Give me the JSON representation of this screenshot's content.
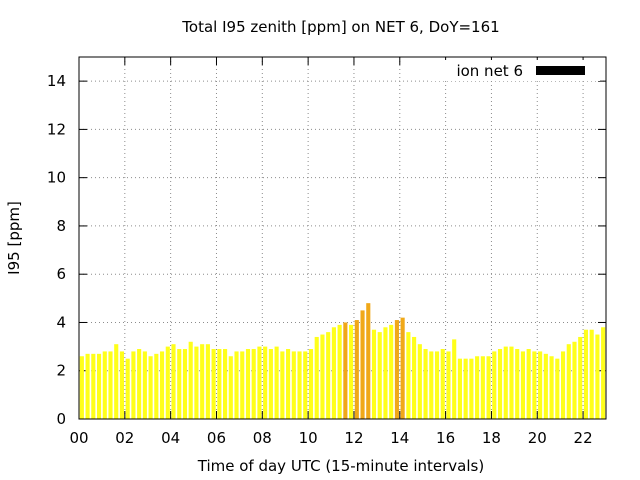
{
  "chart_data": {
    "type": "bar",
    "title": "Total I95 zenith [ppm] on NET 6, DoY=161",
    "xlabel": "Time of day UTC (15-minute intervals)",
    "ylabel": "I95 [ppm]",
    "xlim": [
      0,
      23
    ],
    "ylim": [
      0,
      15
    ],
    "x_ticks": [
      "00",
      "02",
      "04",
      "06",
      "08",
      "10",
      "12",
      "14",
      "16",
      "18",
      "20",
      "22"
    ],
    "y_ticks": [
      "0",
      "2",
      "4",
      "6",
      "8",
      "10",
      "12",
      "14"
    ],
    "grid": true,
    "legend": {
      "placement": "top-right",
      "entries": [
        {
          "label": "ion net 6",
          "color": "#000000"
        }
      ]
    },
    "colors": {
      "normal": "#ffff1a",
      "elevated": "#f0a818"
    },
    "elevated_threshold": 4.0,
    "interval_hours": 0.25,
    "series": [
      {
        "x": [
          0.0,
          0.25,
          0.5,
          0.75,
          1.0,
          1.25,
          1.5,
          1.75,
          2.0,
          2.25,
          2.5,
          2.75,
          3.0,
          3.25,
          3.5,
          3.75,
          4.0,
          4.25,
          4.5,
          4.75,
          5.0,
          5.25,
          5.5,
          5.75,
          6.0,
          6.25,
          6.5,
          6.75,
          7.0,
          7.25,
          7.5,
          7.75,
          8.0,
          8.25,
          8.5,
          8.75,
          9.0,
          9.25,
          9.5,
          9.75,
          10.0,
          10.25,
          10.5,
          10.75,
          11.0,
          11.25,
          11.5,
          11.75,
          12.0,
          12.25,
          12.5,
          12.75,
          13.0,
          13.25,
          13.5,
          13.75,
          14.0,
          14.25,
          14.5,
          14.75,
          15.0,
          15.25,
          15.5,
          15.75,
          16.0,
          16.25,
          16.5,
          16.75,
          17.0,
          17.25,
          17.5,
          17.75,
          18.0,
          18.25,
          18.5,
          18.75,
          19.0,
          19.25,
          19.5,
          19.75,
          20.0,
          20.25,
          20.5,
          20.75,
          21.0,
          21.25,
          21.5,
          21.75,
          22.0,
          22.25,
          22.5,
          22.75
        ],
        "values": [
          2.6,
          2.7,
          2.7,
          2.7,
          2.8,
          2.8,
          3.1,
          2.8,
          2.5,
          2.8,
          2.9,
          2.8,
          2.6,
          2.7,
          2.8,
          3.0,
          3.1,
          2.9,
          2.9,
          3.2,
          3.0,
          3.1,
          3.1,
          2.9,
          2.9,
          2.9,
          2.6,
          2.8,
          2.8,
          2.9,
          2.9,
          3.0,
          3.0,
          2.9,
          3.0,
          2.8,
          2.9,
          2.8,
          2.8,
          2.8,
          2.9,
          3.4,
          3.5,
          3.6,
          3.8,
          3.9,
          4.0,
          3.9,
          4.1,
          4.5,
          4.8,
          3.7,
          3.6,
          3.8,
          3.9,
          4.1,
          4.2,
          3.6,
          3.4,
          3.1,
          2.9,
          2.8,
          2.8,
          2.9,
          2.8,
          3.3,
          2.5,
          2.5,
          2.5,
          2.6,
          2.6,
          2.6,
          2.8,
          2.9,
          3.0,
          3.0,
          2.9,
          2.8,
          2.9,
          2.8,
          2.8,
          2.7,
          2.6,
          2.5,
          2.8,
          3.1,
          3.2,
          3.4,
          3.7,
          3.7,
          3.5,
          3.8
        ]
      }
    ]
  }
}
